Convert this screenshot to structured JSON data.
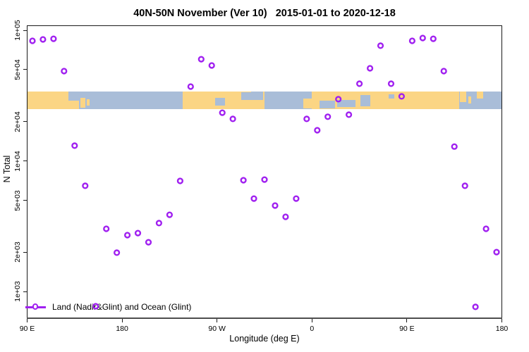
{
  "title": "40N-50N November (Ver 10)   2015-01-01 to 2020-12-18",
  "axes": {
    "y_label": "N Total",
    "x_label": "Longitude (deg E)"
  },
  "legend": {
    "label": "Land (Nadir&Glint) and Ocean (Glint)",
    "position": "bottom-left",
    "symbol": "open-circle-on-line"
  },
  "colors": {
    "point": "#A020F0",
    "land": "#FBD584",
    "ocean": "#A9BDD8",
    "axis_line": "#4d4d4d",
    "box": "#1a1a1a",
    "text": "#000000"
  },
  "chart_data": {
    "type": "scatter",
    "title": "40N-50N November (Ver 10)   2015-01-01 to 2020-12-18",
    "xlabel": "Longitude (deg E)",
    "ylabel": "N Total",
    "grid": false,
    "x_axis": {
      "ticks_deg_as_plotted": [
        -270,
        -180,
        -90,
        0,
        90,
        180
      ],
      "tick_labels": [
        "90 E",
        "180",
        "90 W",
        "0",
        "90 E",
        "180"
      ],
      "range_deg_as_plotted": [
        -270,
        180
      ]
    },
    "y_axis": {
      "scale": "log",
      "ticks": [
        100000,
        50000,
        20000,
        10000,
        5000,
        2000,
        1000
      ],
      "tick_labels": [
        "1e+05",
        "5e+04",
        "2e+04",
        "1e+04",
        "5e+03",
        "2e+03",
        "1e+03"
      ],
      "range": [
        620,
        108000
      ]
    },
    "series": [
      {
        "name": "Land (Nadir&Glint) and Ocean (Glint)",
        "marker": "open-circle",
        "x_deg_east": [
          -265,
          -255,
          -245,
          -235,
          -225,
          -215,
          -205,
          -195,
          -185,
          -175,
          -165,
          -155,
          -145,
          -135,
          -125,
          -115,
          -105,
          -95,
          -85,
          -75,
          -65,
          -55,
          -45,
          -35,
          -25,
          -15,
          -5,
          5,
          15,
          25,
          35,
          45,
          55,
          65,
          75,
          85,
          95,
          105,
          115,
          125,
          135,
          145,
          155,
          165,
          175
        ],
        "n_total": [
          83000,
          85100,
          86100,
          48700,
          13100,
          6460,
          775,
          3030,
          1990,
          2710,
          2810,
          2390,
          3350,
          3880,
          7040,
          37100,
          60100,
          53800,
          23400,
          21000,
          7130,
          5160,
          7210,
          4560,
          3740,
          5160,
          21000,
          17200,
          21800,
          29700,
          22600,
          39000,
          51200,
          76200,
          39000,
          31200,
          83000,
          87300,
          86100,
          48700,
          12900,
          6460,
          766,
          3030,
          2010
        ]
      }
    ],
    "map_band": {
      "n_total_span": [
        25100,
        34000
      ],
      "segments": [
        {
          "from": -270,
          "to": -221,
          "type": "land"
        },
        {
          "from": -221,
          "to": -122.3,
          "type": "ocean"
        },
        {
          "from": -122.3,
          "to": -45,
          "type": "land"
        },
        {
          "from": -45,
          "to": 0,
          "type": "ocean"
        },
        {
          "from": 0,
          "to": 139.5,
          "type": "land"
        },
        {
          "from": 139.5,
          "to": 180,
          "type": "ocean"
        }
      ],
      "patches": [
        {
          "name": "okhotsk-coast",
          "type": "ocean",
          "from": -231,
          "to": -221,
          "top": 0.0,
          "bottom": 0.55
        },
        {
          "name": "japan",
          "type": "land",
          "from": -219.5,
          "to": -214.5,
          "top": 0.35,
          "bottom": 0.95
        },
        {
          "name": "japan-north",
          "type": "land",
          "from": -213.5,
          "to": -210.5,
          "top": 0.45,
          "bottom": 0.8
        },
        {
          "name": "great-lakes",
          "type": "ocean",
          "from": -91.5,
          "to": -82.5,
          "top": 0.35,
          "bottom": 0.8
        },
        {
          "name": "st-lawrence",
          "type": "ocean",
          "from": -67,
          "to": -55,
          "top": 0.05,
          "bottom": 0.5
        },
        {
          "name": "newfoundland",
          "type": "ocean",
          "from": -58,
          "to": -46,
          "top": 0.0,
          "bottom": 0.5
        },
        {
          "name": "iberia-france",
          "type": "land",
          "from": -8,
          "to": -0.5,
          "top": 0.4,
          "bottom": 1.0
        },
        {
          "name": "mediterranean",
          "type": "ocean",
          "from": 7,
          "to": 22,
          "top": 0.55,
          "bottom": 1.0
        },
        {
          "name": "black-sea",
          "type": "ocean",
          "from": 24,
          "to": 41,
          "top": 0.5,
          "bottom": 0.9
        },
        {
          "name": "caspian",
          "type": "ocean",
          "from": 46,
          "to": 55,
          "top": 0.2,
          "bottom": 0.85
        },
        {
          "name": "balkhash",
          "type": "ocean",
          "from": 73,
          "to": 78,
          "top": 0.15,
          "bottom": 0.4
        },
        {
          "name": "sakhalin",
          "type": "land",
          "from": 140,
          "to": 146,
          "top": 0.0,
          "bottom": 0.6
        },
        {
          "name": "hokkaido",
          "type": "land",
          "from": 148,
          "to": 151,
          "top": 0.3,
          "bottom": 0.7
        },
        {
          "name": "kamchatka",
          "type": "land",
          "from": 156,
          "to": 162,
          "top": 0.0,
          "bottom": 0.4
        }
      ]
    }
  }
}
